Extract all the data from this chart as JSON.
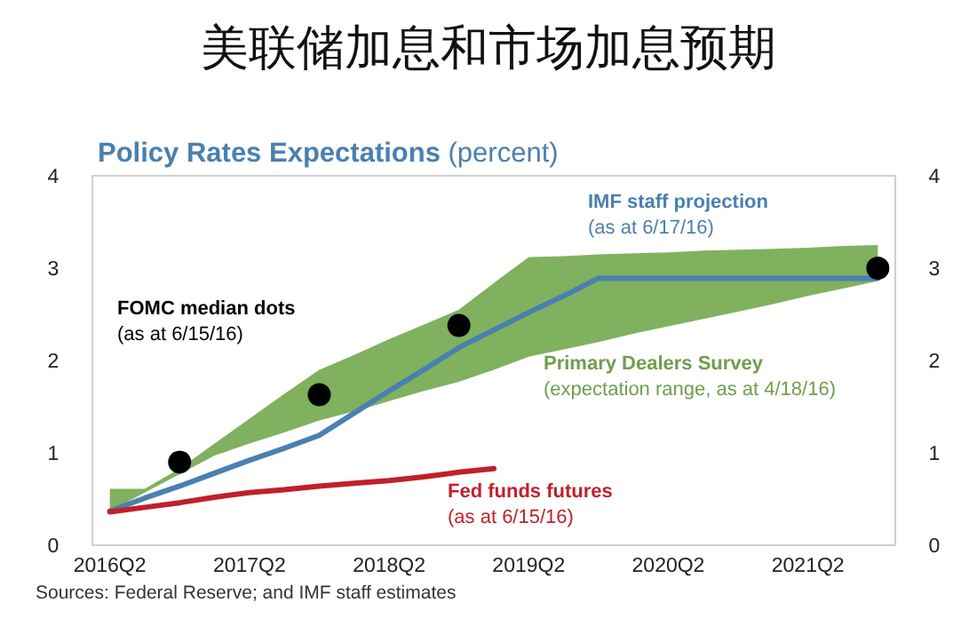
{
  "chart_data": {
    "type": "line",
    "title": "美联储加息和市场加息预期",
    "subtitle": "**Policy Rates Expectations** (percent)",
    "categories": [
      "2016Q2",
      null,
      null,
      null,
      "2017Q2",
      null,
      null,
      null,
      "2018Q2",
      null,
      null,
      null,
      "2019Q2",
      null,
      null,
      null,
      "2020Q2",
      null,
      null,
      null,
      "2021Q2",
      null,
      null
    ],
    "ylim": [
      0,
      4
    ],
    "yticks": [
      0,
      1,
      2,
      3,
      4
    ],
    "y2lim": [
      0,
      4
    ],
    "y2ticks": [
      0,
      1,
      2,
      3,
      4
    ],
    "series": [
      {
        "name": "Primary Dealers Survey (expectation range, as at 4/18/16)",
        "color": "#80b15f",
        "values": [
          null,
          null,
          null,
          null,
          null,
          null,
          null,
          null,
          null,
          null,
          null,
          null,
          null,
          null,
          null,
          null,
          null,
          null,
          null,
          null,
          null,
          null,
          null
        ],
        "upper": [
          0.61,
          0.61,
          0.83,
          1.1,
          1.37,
          1.64,
          1.9,
          2.06,
          2.23,
          2.39,
          2.55,
          2.84,
          3.12,
          3.13,
          3.15,
          3.16,
          3.17,
          3.19,
          3.2,
          3.21,
          3.22,
          3.24,
          3.25
        ],
        "lower": [
          0.37,
          0.57,
          0.77,
          0.97,
          1.1,
          1.22,
          1.35,
          1.45,
          1.56,
          1.67,
          1.77,
          1.9,
          2.04,
          2.12,
          2.2,
          2.29,
          2.37,
          2.45,
          2.53,
          2.61,
          2.7,
          2.78,
          2.86
        ]
      },
      {
        "name": "IMF staff projection (as at 6/17/16)",
        "color": "#4a80b0",
        "values": [
          0.37,
          0.51,
          0.64,
          0.78,
          0.92,
          1.05,
          1.19,
          1.43,
          1.67,
          1.9,
          2.14,
          2.33,
          2.52,
          2.7,
          2.89,
          2.89,
          2.89,
          2.89,
          2.89,
          2.89,
          2.89,
          2.89,
          2.89
        ]
      },
      {
        "name": "Fed funds futures (as at 6/15/16)",
        "color": "#c0202a",
        "values": [
          0.36,
          0.41,
          0.46,
          0.52,
          0.57,
          0.6,
          0.64,
          0.67,
          0.7,
          0.74,
          0.79,
          0.83,
          null,
          null,
          null,
          null,
          null,
          null,
          null,
          null,
          null,
          null,
          null
        ]
      },
      {
        "name": "FOMC median dots (as at 6/15/16)",
        "type": "scatter",
        "color": "#000000",
        "values": [
          null,
          null,
          0.9,
          null,
          null,
          null,
          1.63,
          null,
          null,
          null,
          2.38,
          null,
          null,
          null,
          null,
          null,
          null,
          null,
          null,
          null,
          null,
          null,
          3.0
        ]
      }
    ],
    "legend": false,
    "annotations": [
      "Sources: Federal Reserve; and IMF staff estimates"
    ]
  }
}
